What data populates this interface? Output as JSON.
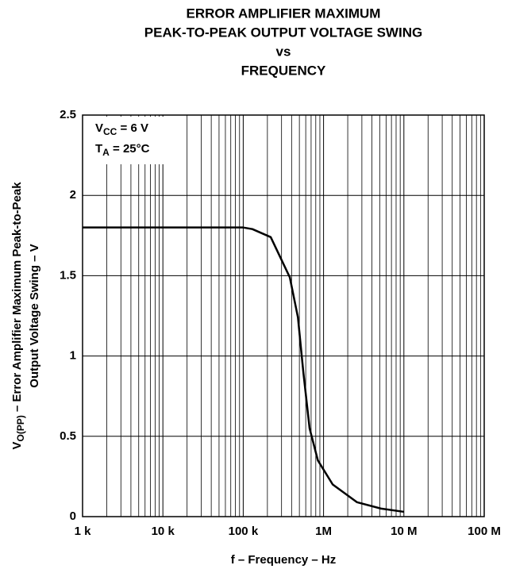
{
  "chart_data": {
    "type": "line",
    "title": [
      "ERROR AMPLIFIER MAXIMUM",
      "PEAK-TO-PEAK OUTPUT VOLTAGE SWING",
      "vs",
      "FREQUENCY"
    ],
    "xlabel": "f – Frequency – Hz",
    "ylabel": {
      "symbol": "V",
      "subscript": "O(PP)",
      "text": " – Error Amplifier Maximum Peak-to-Peak",
      "line2": "Output Voltage Swing – V"
    },
    "annotations": [
      {
        "symbol": "V",
        "subscript": "CC",
        "text": " = 6 V"
      },
      {
        "symbol": "T",
        "subscript": "A",
        "text": " = 25°C"
      }
    ],
    "log_x": true,
    "grid": true,
    "xlim": [
      1000,
      100000000
    ],
    "xticks": [
      {
        "value": 1000,
        "label": "1 k"
      },
      {
        "value": 10000,
        "label": "10 k"
      },
      {
        "value": 100000,
        "label": "100 k"
      },
      {
        "value": 1000000,
        "label": "1M"
      },
      {
        "value": 10000000,
        "label": "10 M"
      },
      {
        "value": 100000000,
        "label": "100 M"
      }
    ],
    "ylim": [
      0,
      2.5
    ],
    "yticks": [
      0,
      0.5,
      1,
      1.5,
      2,
      2.5
    ],
    "x": [
      1000,
      10000,
      100000,
      130000,
      220000,
      380000,
      480000,
      560000,
      670000,
      850000,
      1300000,
      2600000,
      5200000,
      10000000
    ],
    "series": [
      {
        "name": "VO(PP)",
        "color": "#000000",
        "values": [
          1.8,
          1.8,
          1.8,
          1.79,
          1.74,
          1.49,
          1.24,
          0.9,
          0.55,
          0.35,
          0.2,
          0.09,
          0.05,
          0.03
        ]
      }
    ]
  }
}
